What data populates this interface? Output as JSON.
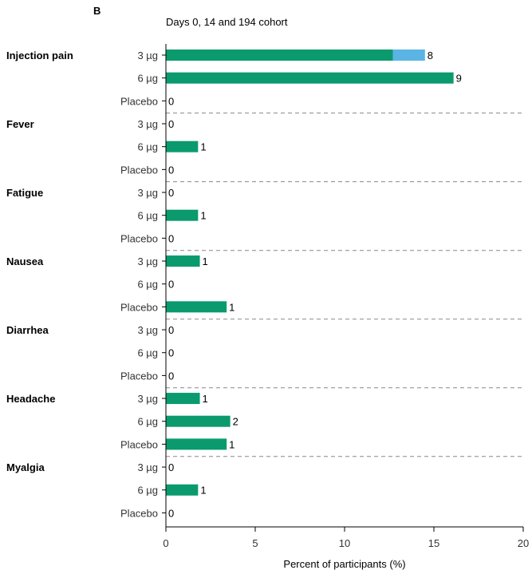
{
  "panel_label": "B",
  "chart_data": {
    "type": "bar",
    "orientation": "horizontal",
    "subtitle": "Days 0, 14 and 194 cohort",
    "xlabel": "Percent of participants (%)",
    "xlim": [
      0,
      20
    ],
    "xticks": [
      "0",
      "5",
      "10",
      "15",
      "20"
    ],
    "groups": [
      {
        "name": "Injection pain",
        "rows": [
          {
            "label": "3 µg",
            "segments": [
              12.7,
              1.8
            ],
            "count": "8"
          },
          {
            "label": "6 µg",
            "segments": [
              16.1
            ],
            "count": "9"
          },
          {
            "label": "Placebo",
            "segments": [
              0
            ],
            "count": "0"
          }
        ]
      },
      {
        "name": "Fever",
        "rows": [
          {
            "label": "3 µg",
            "segments": [
              0
            ],
            "count": "0"
          },
          {
            "label": "6 µg",
            "segments": [
              1.8
            ],
            "count": "1"
          },
          {
            "label": "Placebo",
            "segments": [
              0
            ],
            "count": "0"
          }
        ]
      },
      {
        "name": "Fatigue",
        "rows": [
          {
            "label": "3 µg",
            "segments": [
              0
            ],
            "count": "0"
          },
          {
            "label": "6 µg",
            "segments": [
              1.8
            ],
            "count": "1"
          },
          {
            "label": "Placebo",
            "segments": [
              0
            ],
            "count": "0"
          }
        ]
      },
      {
        "name": "Nausea",
        "rows": [
          {
            "label": "3 µg",
            "segments": [
              1.9
            ],
            "count": "1"
          },
          {
            "label": "6 µg",
            "segments": [
              0
            ],
            "count": "0"
          },
          {
            "label": "Placebo",
            "segments": [
              3.4
            ],
            "count": "1"
          }
        ]
      },
      {
        "name": "Diarrhea",
        "rows": [
          {
            "label": "3 µg",
            "segments": [
              0
            ],
            "count": "0"
          },
          {
            "label": "6 µg",
            "segments": [
              0
            ],
            "count": "0"
          },
          {
            "label": "Placebo",
            "segments": [
              0
            ],
            "count": "0"
          }
        ]
      },
      {
        "name": "Headache",
        "rows": [
          {
            "label": "3 µg",
            "segments": [
              1.9
            ],
            "count": "1"
          },
          {
            "label": "6 µg",
            "segments": [
              3.6
            ],
            "count": "2"
          },
          {
            "label": "Placebo",
            "segments": [
              3.4
            ],
            "count": "1"
          }
        ]
      },
      {
        "name": "Myalgia",
        "rows": [
          {
            "label": "3 µg",
            "segments": [
              0
            ],
            "count": "0"
          },
          {
            "label": "6 µg",
            "segments": [
              1.8
            ],
            "count": "1"
          },
          {
            "label": "Placebo",
            "segments": [
              0
            ],
            "count": "0"
          }
        ]
      }
    ],
    "colors": [
      "#0a9a6e",
      "#5ab4e4"
    ],
    "grid": false,
    "group_separators": "dashed"
  }
}
